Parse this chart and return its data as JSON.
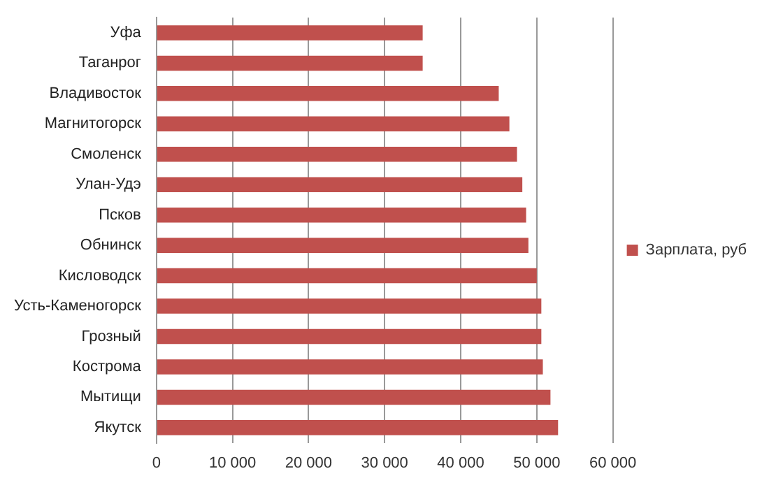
{
  "chart_data": {
    "type": "bar",
    "orientation": "horizontal",
    "categories": [
      "Уфа",
      "Таганрог",
      "Владивосток",
      "Магнитогорск",
      "Смоленск",
      "Улан-Удэ",
      "Псков",
      "Обнинск",
      "Кисловодск",
      "Усть-Каменогорск",
      "Грозный",
      "Кострома",
      "Мытищи",
      "Якутск"
    ],
    "series": [
      {
        "name": "Зарплата, руб",
        "color": "#c0504d",
        "values": [
          35000,
          35000,
          45000,
          46400,
          47400,
          48100,
          48600,
          48900,
          50000,
          50600,
          50600,
          50800,
          51800,
          52800
        ]
      }
    ],
    "xlim": [
      0,
      60000
    ],
    "xticks": [
      0,
      {
        "value": 10000,
        "label": "10 000"
      },
      {
        "value": 20000,
        "label": "20 000"
      },
      {
        "value": 30000,
        "label": "30 000"
      },
      {
        "value": 40000,
        "label": "40 000"
      },
      {
        "value": 50000,
        "label": "50 000"
      },
      {
        "value": 60000,
        "label": "60 000"
      }
    ],
    "grid": "x",
    "legend": "right"
  }
}
